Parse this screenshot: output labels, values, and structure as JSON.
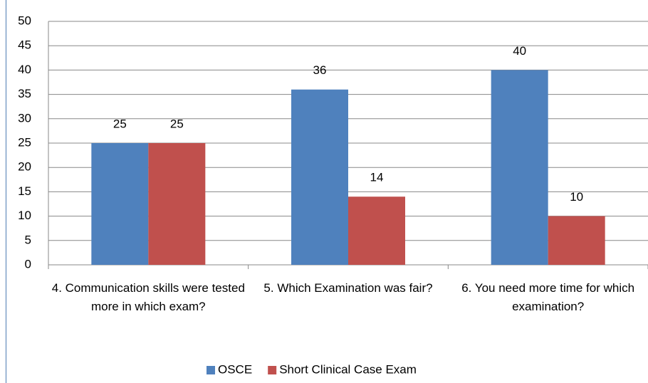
{
  "chart_data": {
    "type": "bar",
    "categories": [
      "4. Communication skills were tested more in which exam?",
      "5. Which Examination was fair?",
      "6. You need more time for which examination?"
    ],
    "series": [
      {
        "name": "OSCE",
        "color": "#4f81bd",
        "values": [
          25,
          36,
          40
        ]
      },
      {
        "name": "Short Clinical Case Exam",
        "color": "#c0504d",
        "values": [
          25,
          14,
          10
        ]
      }
    ],
    "ylim": [
      0,
      50
    ],
    "yticks": [
      0,
      5,
      10,
      15,
      20,
      25,
      30,
      35,
      40,
      45,
      50
    ],
    "grid": true,
    "legend": "bottom"
  }
}
